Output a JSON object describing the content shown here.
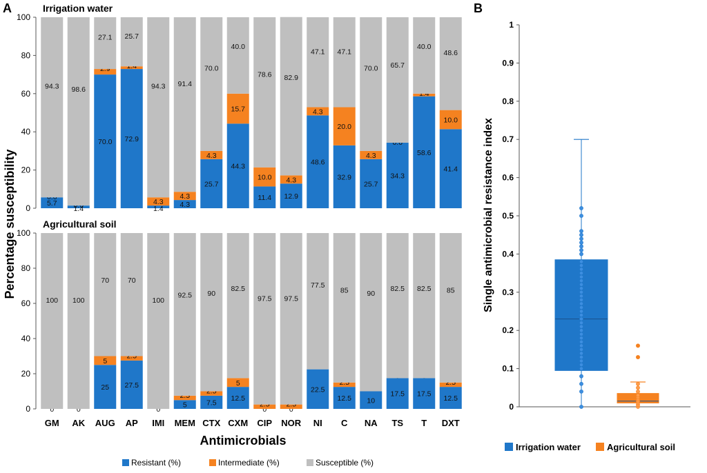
{
  "panel_a": {
    "letter": "A",
    "ylabel": "Percentage susceptibility",
    "xlabel": "Antimicrobials",
    "categories": [
      "GM",
      "AK",
      "AUG",
      "AP",
      "IMI",
      "MEM",
      "CTX",
      "CXM",
      "CIP",
      "NOR",
      "NI",
      "C",
      "NA",
      "TS",
      "T",
      "DXT"
    ],
    "legend": {
      "resistant": "Resistant (%)",
      "intermediate": "Intermediate (%)",
      "susceptible": "Susceptible (%)"
    },
    "colors": {
      "resistant": "#1f77c9",
      "intermediate": "#f58220",
      "susceptible": "#bfbfbf"
    }
  },
  "panel_b": {
    "letter": "B",
    "ylabel": "Single antimicrobial resistance index",
    "legend": {
      "water": "Irrigation water",
      "soil": "Agricultural soil"
    },
    "colors": {
      "water": "#1f77c9",
      "soil": "#f58220"
    }
  },
  "chart_data": [
    {
      "type": "bar",
      "stacked": true,
      "title": "Irrigation water",
      "categories": [
        "GM",
        "AK",
        "AUG",
        "AP",
        "IMI",
        "MEM",
        "CTX",
        "CXM",
        "CIP",
        "NOR",
        "NI",
        "C",
        "NA",
        "TS",
        "T",
        "DXT"
      ],
      "ylim": [
        0,
        100
      ],
      "yticks": [
        0,
        20,
        40,
        60,
        80,
        100
      ],
      "series": [
        {
          "name": "Resistant (%)",
          "values": [
            5.7,
            1.4,
            70.0,
            72.9,
            1.4,
            4.3,
            25.7,
            44.3,
            11.4,
            12.9,
            48.6,
            32.9,
            25.7,
            34.3,
            58.6,
            41.4
          ],
          "labels": [
            "5.7",
            "1.4",
            "70.0",
            "72.9",
            "1.4",
            "4.3",
            "25.7",
            "44.3",
            "11.4",
            "12.9",
            "48.6",
            "32.9",
            "25.7",
            "34.3",
            "58.6",
            "41.4"
          ]
        },
        {
          "name": "Intermediate (%)",
          "values": [
            0.0,
            0.0,
            2.9,
            1.4,
            4.3,
            4.3,
            4.3,
            15.7,
            10.0,
            4.3,
            4.3,
            20.0,
            4.3,
            0.0,
            1.4,
            10.0
          ],
          "labels": [
            "0.0",
            "0.0",
            "2.9",
            "1.4",
            "4.3",
            "4.3",
            "4.3",
            "15.7",
            "10.0",
            "4.3",
            "4.3",
            "20.0",
            "4.3",
            "0.0",
            "1.4",
            "10.0"
          ]
        },
        {
          "name": "Susceptible (%)",
          "values": [
            94.3,
            98.6,
            27.1,
            25.7,
            94.3,
            91.4,
            70.0,
            40.0,
            78.6,
            82.9,
            47.1,
            47.1,
            70.0,
            65.7,
            40.0,
            48.6
          ],
          "labels": [
            "94.3",
            "98.6",
            "27.1",
            "25.7",
            "94.3",
            "91.4",
            "70.0",
            "40.0",
            "78.6",
            "82.9",
            "47.1",
            "47.1",
            "70.0",
            "65.7",
            "40.0",
            "48.6"
          ]
        }
      ]
    },
    {
      "type": "bar",
      "stacked": true,
      "title": "Agricultural soil",
      "categories": [
        "GM",
        "AK",
        "AUG",
        "AP",
        "IMI",
        "MEM",
        "CTX",
        "CXM",
        "CIP",
        "NOR",
        "NI",
        "C",
        "NA",
        "TS",
        "T",
        "DXT"
      ],
      "ylim": [
        0,
        100
      ],
      "yticks": [
        0,
        20,
        40,
        60,
        80,
        100
      ],
      "series": [
        {
          "name": "Resistant (%)",
          "values": [
            0,
            0,
            25,
            27.5,
            0,
            5,
            7.5,
            12.5,
            0,
            0,
            22.5,
            12.5,
            10,
            17.5,
            17.5,
            12.5
          ],
          "labels": [
            "0",
            "0",
            "25",
            "27.5",
            "0",
            "5",
            "7.5",
            "12.5",
            "0",
            "0",
            "22.5",
            "12.5",
            "10",
            "17.5",
            "17.5",
            "12.5"
          ]
        },
        {
          "name": "Intermediate (%)",
          "values": [
            0,
            0,
            5,
            2.5,
            0,
            2.5,
            2.5,
            5,
            2.5,
            2.5,
            0,
            2.5,
            0,
            0,
            0,
            2.5
          ],
          "labels": [
            "",
            "",
            "5",
            "2.5",
            "",
            "2.5",
            "2.5",
            "5",
            "2.5",
            "2.5",
            "0",
            "2.5",
            "0",
            "0",
            "0",
            "2.5"
          ]
        },
        {
          "name": "Susceptible (%)",
          "values": [
            100,
            100,
            70,
            70,
            100,
            92.5,
            90,
            82.5,
            97.5,
            97.5,
            77.5,
            85,
            90,
            82.5,
            82.5,
            85
          ],
          "labels": [
            "100",
            "100",
            "70",
            "70",
            "100",
            "92.5",
            "90",
            "82.5",
            "97.5",
            "97.5",
            "77.5",
            "85",
            "90",
            "82.5",
            "82.5",
            "85"
          ]
        }
      ]
    },
    {
      "type": "box",
      "ylabel": "Single antimicrobial resistance index",
      "ylim": [
        0,
        1
      ],
      "yticks": [
        0,
        0.1,
        0.2,
        0.3,
        0.4,
        0.5,
        0.6,
        0.7,
        0.8,
        0.9,
        1
      ],
      "ytick_labels": [
        "0",
        "0.1",
        "0.2",
        "0.3",
        "0.4",
        "0.5",
        "0.6",
        "0.7",
        "0.8",
        "0.9",
        "1"
      ],
      "series": [
        {
          "name": "Irrigation water",
          "min": 0,
          "q1": 0.095,
          "median": 0.23,
          "q3": 0.385,
          "max": 0.7,
          "points": [
            0,
            0.04,
            0.06,
            0.08,
            0.1,
            0.11,
            0.12,
            0.13,
            0.14,
            0.15,
            0.16,
            0.17,
            0.18,
            0.19,
            0.2,
            0.21,
            0.22,
            0.23,
            0.24,
            0.25,
            0.26,
            0.27,
            0.28,
            0.29,
            0.3,
            0.31,
            0.32,
            0.33,
            0.34,
            0.35,
            0.36,
            0.37,
            0.38,
            0.4,
            0.41,
            0.42,
            0.43,
            0.44,
            0.45,
            0.46,
            0.5,
            0.52
          ]
        },
        {
          "name": "Agricultural soil",
          "min": 0,
          "q1": 0.01,
          "median": 0.015,
          "q3": 0.035,
          "max": 0.065,
          "outliers": [
            0.13,
            0.16
          ],
          "points": [
            0,
            0.005,
            0.01,
            0.015,
            0.02,
            0.025,
            0.03,
            0.04,
            0.05,
            0.06
          ]
        }
      ]
    }
  ]
}
